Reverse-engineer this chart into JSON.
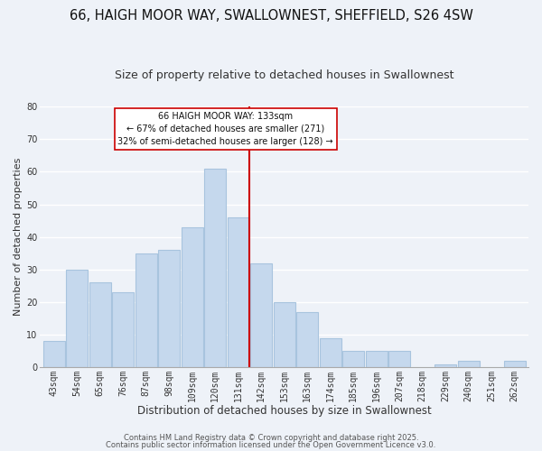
{
  "title": "66, HAIGH MOOR WAY, SWALLOWNEST, SHEFFIELD, S26 4SW",
  "subtitle": "Size of property relative to detached houses in Swallownest",
  "xlabel": "Distribution of detached houses by size in Swallownest",
  "ylabel": "Number of detached properties",
  "bar_labels": [
    "43sqm",
    "54sqm",
    "65sqm",
    "76sqm",
    "87sqm",
    "98sqm",
    "109sqm",
    "120sqm",
    "131sqm",
    "142sqm",
    "153sqm",
    "163sqm",
    "174sqm",
    "185sqm",
    "196sqm",
    "207sqm",
    "218sqm",
    "229sqm",
    "240sqm",
    "251sqm",
    "262sqm"
  ],
  "bar_values": [
    8,
    30,
    26,
    23,
    35,
    36,
    43,
    61,
    46,
    32,
    20,
    17,
    9,
    5,
    5,
    5,
    0,
    1,
    2,
    0,
    2
  ],
  "bar_color": "#c5d8ed",
  "bar_edge_color": "#a8c4de",
  "vline_x": 8,
  "vline_color": "#cc0000",
  "ylim": [
    0,
    80
  ],
  "annotation_line1": "66 HAIGH MOOR WAY: 133sqm",
  "annotation_line2": "← 67% of detached houses are smaller (271)",
  "annotation_line3": "32% of semi-detached houses are larger (128) →",
  "bg_color": "#eef2f8",
  "grid_color": "#ffffff",
  "footer_line1": "Contains HM Land Registry data © Crown copyright and database right 2025.",
  "footer_line2": "Contains public sector information licensed under the Open Government Licence v3.0.",
  "title_fontsize": 10.5,
  "subtitle_fontsize": 9,
  "xlabel_fontsize": 8.5,
  "ylabel_fontsize": 8,
  "tick_fontsize": 7,
  "annotation_fontsize": 7,
  "footer_fontsize": 6
}
